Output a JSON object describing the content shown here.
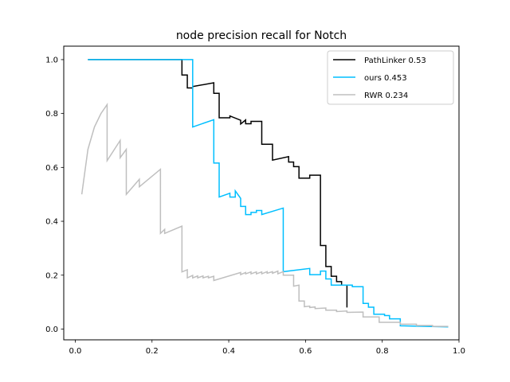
{
  "chart_data": {
    "type": "line",
    "title": "node precision recall for Notch",
    "xlabel": "",
    "ylabel": "",
    "xlim": [
      -0.03,
      1.0
    ],
    "ylim": [
      -0.04,
      1.05
    ],
    "x_ticks": [
      {
        "value": 0.0,
        "label": "0.0"
      },
      {
        "value": 0.2,
        "label": "0.2"
      },
      {
        "value": 0.4,
        "label": "0.4"
      },
      {
        "value": 0.6,
        "label": "0.6"
      },
      {
        "value": 0.8,
        "label": "0.8"
      },
      {
        "value": 1.0,
        "label": "1.0"
      }
    ],
    "y_ticks": [
      {
        "value": 0.0,
        "label": "0.0"
      },
      {
        "value": 0.2,
        "label": "0.2"
      },
      {
        "value": 0.4,
        "label": "0.4"
      },
      {
        "value": 0.6,
        "label": "0.6"
      },
      {
        "value": 0.8,
        "label": "0.8"
      },
      {
        "value": 1.0,
        "label": "1.0"
      }
    ],
    "grid": false,
    "legend_position": "top-right",
    "series": [
      {
        "name": "PathLinker 0.53",
        "color": "#000000",
        "points": [
          [
            0.033,
            1.0
          ],
          [
            0.278,
            1.0
          ],
          [
            0.278,
            0.943
          ],
          [
            0.292,
            0.943
          ],
          [
            0.292,
            0.895
          ],
          [
            0.306,
            0.895
          ],
          [
            0.306,
            0.9
          ],
          [
            0.361,
            0.914
          ],
          [
            0.361,
            0.875
          ],
          [
            0.375,
            0.875
          ],
          [
            0.375,
            0.784
          ],
          [
            0.403,
            0.784
          ],
          [
            0.403,
            0.791
          ],
          [
            0.431,
            0.775
          ],
          [
            0.431,
            0.761
          ],
          [
            0.444,
            0.776
          ],
          [
            0.444,
            0.762
          ],
          [
            0.458,
            0.762
          ],
          [
            0.458,
            0.771
          ],
          [
            0.486,
            0.771
          ],
          [
            0.486,
            0.686
          ],
          [
            0.514,
            0.686
          ],
          [
            0.514,
            0.627
          ],
          [
            0.556,
            0.64
          ],
          [
            0.556,
            0.62
          ],
          [
            0.569,
            0.62
          ],
          [
            0.569,
            0.603
          ],
          [
            0.583,
            0.603
          ],
          [
            0.583,
            0.56
          ],
          [
            0.611,
            0.56
          ],
          [
            0.611,
            0.571
          ],
          [
            0.639,
            0.571
          ],
          [
            0.639,
            0.31
          ],
          [
            0.653,
            0.31
          ],
          [
            0.653,
            0.232
          ],
          [
            0.667,
            0.232
          ],
          [
            0.667,
            0.196
          ],
          [
            0.681,
            0.196
          ],
          [
            0.681,
            0.176
          ],
          [
            0.694,
            0.176
          ],
          [
            0.694,
            0.163
          ],
          [
            0.708,
            0.163
          ],
          [
            0.708,
            0.08
          ]
        ]
      },
      {
        "name": "ours 0.453",
        "color": "#00bfff",
        "points": [
          [
            0.033,
            1.0
          ],
          [
            0.306,
            1.0
          ],
          [
            0.306,
            0.75
          ],
          [
            0.361,
            0.777
          ],
          [
            0.361,
            0.616
          ],
          [
            0.375,
            0.616
          ],
          [
            0.375,
            0.49
          ],
          [
            0.403,
            0.504
          ],
          [
            0.403,
            0.49
          ],
          [
            0.417,
            0.49
          ],
          [
            0.417,
            0.513
          ],
          [
            0.431,
            0.485
          ],
          [
            0.431,
            0.455
          ],
          [
            0.444,
            0.455
          ],
          [
            0.444,
            0.425
          ],
          [
            0.458,
            0.425
          ],
          [
            0.458,
            0.433
          ],
          [
            0.472,
            0.433
          ],
          [
            0.472,
            0.44
          ],
          [
            0.486,
            0.44
          ],
          [
            0.486,
            0.425
          ],
          [
            0.542,
            0.449
          ],
          [
            0.542,
            0.213
          ],
          [
            0.611,
            0.225
          ],
          [
            0.611,
            0.202
          ],
          [
            0.639,
            0.202
          ],
          [
            0.639,
            0.215
          ],
          [
            0.653,
            0.215
          ],
          [
            0.653,
            0.186
          ],
          [
            0.667,
            0.186
          ],
          [
            0.667,
            0.163
          ],
          [
            0.722,
            0.163
          ],
          [
            0.722,
            0.157
          ],
          [
            0.75,
            0.157
          ],
          [
            0.75,
            0.095
          ],
          [
            0.764,
            0.095
          ],
          [
            0.764,
            0.081
          ],
          [
            0.778,
            0.081
          ],
          [
            0.778,
            0.055
          ],
          [
            0.806,
            0.055
          ],
          [
            0.806,
            0.05
          ],
          [
            0.819,
            0.05
          ],
          [
            0.819,
            0.038
          ],
          [
            0.847,
            0.038
          ],
          [
            0.847,
            0.012
          ],
          [
            0.972,
            0.008
          ]
        ]
      },
      {
        "name": "RWR 0.234",
        "color": "#bfbfbf",
        "points": [
          [
            0.017,
            0.5
          ],
          [
            0.033,
            0.667
          ],
          [
            0.05,
            0.75
          ],
          [
            0.067,
            0.8
          ],
          [
            0.083,
            0.833
          ],
          [
            0.083,
            0.625
          ],
          [
            0.117,
            0.7
          ],
          [
            0.117,
            0.636
          ],
          [
            0.133,
            0.667
          ],
          [
            0.133,
            0.5
          ],
          [
            0.167,
            0.556
          ],
          [
            0.167,
            0.528
          ],
          [
            0.222,
            0.593
          ],
          [
            0.222,
            0.355
          ],
          [
            0.233,
            0.37
          ],
          [
            0.233,
            0.355
          ],
          [
            0.278,
            0.382
          ],
          [
            0.278,
            0.212
          ],
          [
            0.292,
            0.22
          ],
          [
            0.292,
            0.19
          ],
          [
            0.306,
            0.199
          ],
          [
            0.306,
            0.19
          ],
          [
            0.319,
            0.197
          ],
          [
            0.319,
            0.19
          ],
          [
            0.333,
            0.197
          ],
          [
            0.333,
            0.19
          ],
          [
            0.347,
            0.196
          ],
          [
            0.347,
            0.19
          ],
          [
            0.361,
            0.196
          ],
          [
            0.361,
            0.18
          ],
          [
            0.431,
            0.21
          ],
          [
            0.431,
            0.202
          ],
          [
            0.444,
            0.21
          ],
          [
            0.444,
            0.205
          ],
          [
            0.458,
            0.212
          ],
          [
            0.458,
            0.205
          ],
          [
            0.472,
            0.212
          ],
          [
            0.472,
            0.205
          ],
          [
            0.486,
            0.212
          ],
          [
            0.486,
            0.205
          ],
          [
            0.5,
            0.213
          ],
          [
            0.5,
            0.207
          ],
          [
            0.514,
            0.213
          ],
          [
            0.514,
            0.207
          ],
          [
            0.528,
            0.215
          ],
          [
            0.528,
            0.205
          ],
          [
            0.542,
            0.213
          ],
          [
            0.542,
            0.2
          ],
          [
            0.556,
            0.2
          ],
          [
            0.556,
            0.2
          ],
          [
            0.569,
            0.2
          ],
          [
            0.569,
            0.159
          ],
          [
            0.583,
            0.163
          ],
          [
            0.583,
            0.104
          ],
          [
            0.597,
            0.104
          ],
          [
            0.597,
            0.083
          ],
          [
            0.611,
            0.085
          ],
          [
            0.611,
            0.08
          ],
          [
            0.625,
            0.082
          ],
          [
            0.625,
            0.076
          ],
          [
            0.653,
            0.078
          ],
          [
            0.653,
            0.07
          ],
          [
            0.681,
            0.07
          ],
          [
            0.681,
            0.065
          ],
          [
            0.708,
            0.067
          ],
          [
            0.708,
            0.062
          ],
          [
            0.75,
            0.063
          ],
          [
            0.75,
            0.045
          ],
          [
            0.792,
            0.045
          ],
          [
            0.792,
            0.025
          ],
          [
            0.847,
            0.025
          ],
          [
            0.847,
            0.018
          ],
          [
            0.889,
            0.018
          ],
          [
            0.889,
            0.013
          ],
          [
            0.931,
            0.013
          ],
          [
            0.931,
            0.01
          ],
          [
            0.972,
            0.01
          ]
        ]
      }
    ]
  }
}
